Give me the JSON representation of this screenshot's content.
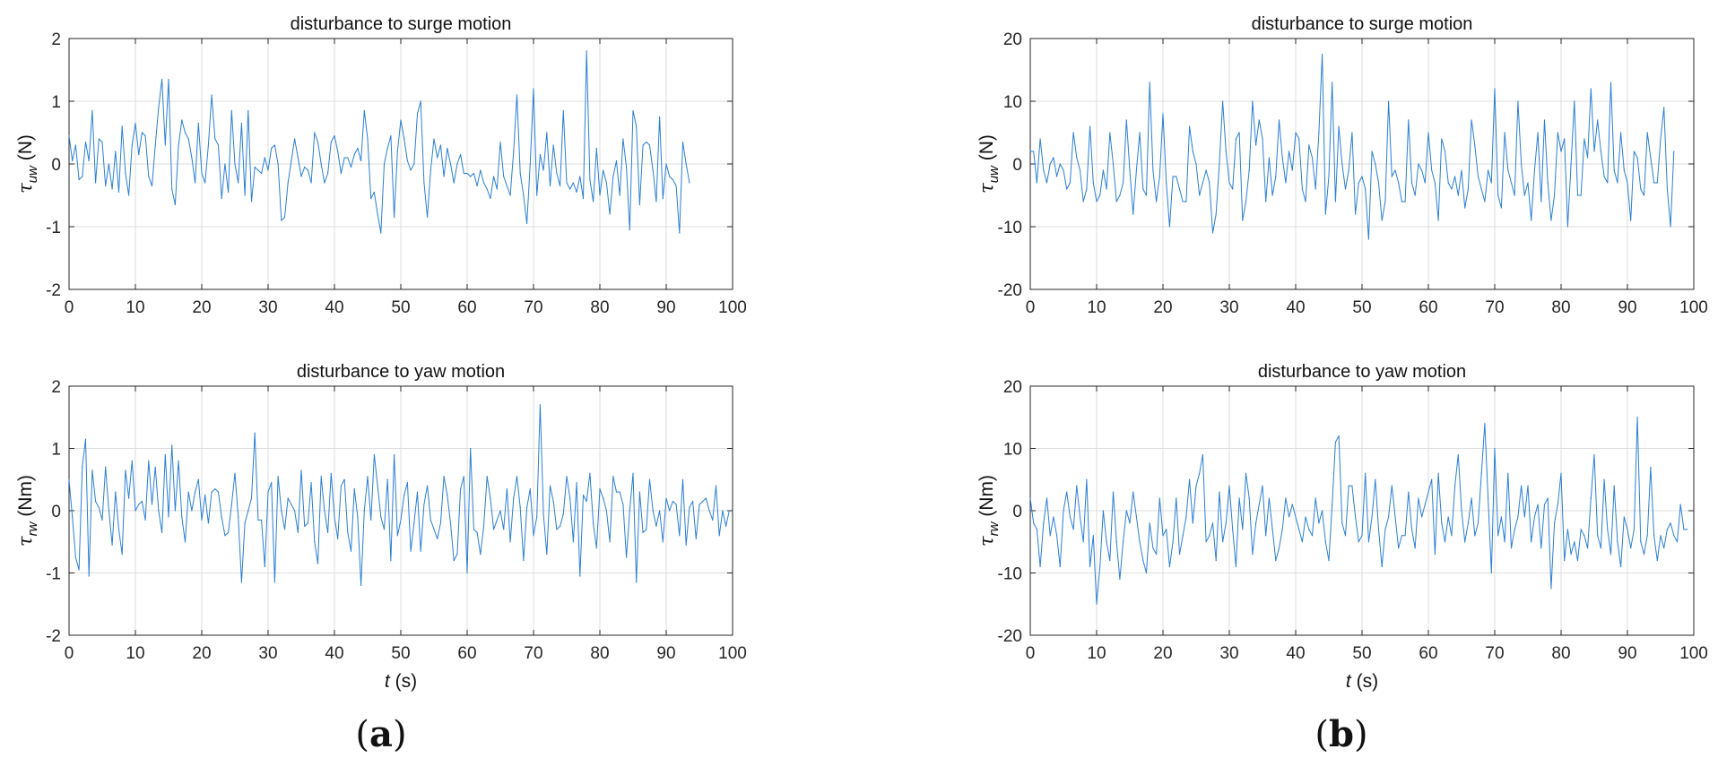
{
  "colors": {
    "series": "#2b7fd4",
    "axis": "#262626",
    "grid": "#dcdcdc"
  },
  "panel_labels": {
    "a": "a",
    "b": "b"
  },
  "chart_data": [
    {
      "id": "a-surge",
      "type": "line",
      "title": "disturbance to surge motion",
      "ylabel_symbol": "τ",
      "ylabel_sub": "uw",
      "ylabel_unit": "(N)",
      "xlabel": "",
      "xlim": [
        0,
        100
      ],
      "ylim": [
        -2,
        2
      ],
      "xticks": [
        0,
        10,
        20,
        30,
        40,
        50,
        60,
        70,
        80,
        90,
        100
      ],
      "yticks": [
        -2,
        -1,
        0,
        1,
        2
      ],
      "grid": true,
      "series": [
        {
          "x_start": 0,
          "x_step": 0.5,
          "values": [
            0.45,
            0.05,
            0.3,
            -0.25,
            -0.2,
            0.35,
            0.05,
            0.85,
            -0.3,
            0.4,
            0.35,
            -0.35,
            0.0,
            -0.4,
            0.2,
            -0.45,
            0.6,
            -0.15,
            -0.5,
            0.3,
            0.65,
            0.15,
            0.5,
            0.45,
            -0.2,
            -0.35,
            0.3,
            0.9,
            1.35,
            0.3,
            1.35,
            -0.4,
            -0.65,
            0.3,
            0.7,
            0.5,
            0.4,
            0.1,
            -0.3,
            0.65,
            -0.15,
            -0.3,
            0.3,
            1.1,
            0.4,
            0.3,
            -0.55,
            0.0,
            -0.45,
            0.85,
            0.0,
            -0.3,
            0.65,
            -0.5,
            0.85,
            -0.6,
            -0.05,
            -0.1,
            -0.15,
            0.1,
            -0.1,
            0.25,
            0.3,
            0.0,
            -0.9,
            -0.85,
            -0.3,
            0.05,
            0.4,
            0.1,
            -0.2,
            -0.05,
            -0.1,
            -0.3,
            0.5,
            0.35,
            0.0,
            -0.3,
            -0.15,
            0.35,
            0.45,
            0.2,
            -0.15,
            0.1,
            0.1,
            -0.05,
            0.15,
            0.25,
            0.05,
            0.85,
            0.4,
            -0.55,
            -0.45,
            -0.8,
            -1.1,
            0.0,
            0.25,
            0.45,
            -0.85,
            0.2,
            0.7,
            0.4,
            0.05,
            -0.1,
            0.0,
            0.8,
            1.0,
            -0.3,
            -0.85,
            -0.1,
            0.4,
            0.1,
            0.3,
            -0.2,
            0.25,
            0.0,
            -0.3,
            0.0,
            0.15,
            -0.15,
            -0.15,
            -0.2,
            -0.15,
            -0.35,
            -0.1,
            -0.3,
            -0.4,
            -0.55,
            -0.2,
            -0.4,
            0.35,
            -0.2,
            -0.35,
            -0.5,
            0.2,
            1.1,
            -0.15,
            -0.5,
            -0.95,
            0.0,
            1.2,
            -0.5,
            0.15,
            -0.1,
            0.5,
            -0.35,
            0.3,
            -0.15,
            -0.35,
            0.85,
            -0.3,
            -0.4,
            -0.3,
            -0.45,
            -0.2,
            -0.55,
            1.8,
            -0.25,
            -0.6,
            0.25,
            -0.5,
            -0.1,
            -0.3,
            -0.8,
            -0.2,
            0.05,
            -0.5,
            0.4,
            -0.05,
            -1.05,
            0.85,
            0.6,
            -0.65,
            0.3,
            0.35,
            0.3,
            -0.1,
            -0.6,
            0.75,
            -0.55,
            0.0,
            -0.2,
            -0.25,
            -0.35,
            -1.1,
            0.35,
            0.0,
            -0.3
          ]
        }
      ]
    },
    {
      "id": "a-yaw",
      "type": "line",
      "title": "disturbance to yaw motion",
      "ylabel_symbol": "τ",
      "ylabel_sub": "rw",
      "ylabel_unit": "(Nm)",
      "xlabel_symbol": "t",
      "xlabel_unit": "(s)",
      "xlim": [
        0,
        100
      ],
      "ylim": [
        -2,
        2
      ],
      "xticks": [
        0,
        10,
        20,
        30,
        40,
        50,
        60,
        70,
        80,
        90,
        100
      ],
      "yticks": [
        -2,
        -1,
        0,
        1,
        2
      ],
      "grid": true,
      "series": [
        {
          "x_start": 0,
          "x_step": 0.5,
          "values": [
            0.5,
            -0.1,
            -0.75,
            -0.95,
            0.7,
            1.15,
            -1.05,
            0.65,
            0.15,
            0.05,
            -0.15,
            0.7,
            0.0,
            -0.55,
            0.3,
            -0.3,
            -0.7,
            0.65,
            0.2,
            0.8,
            0.0,
            0.1,
            0.15,
            -0.15,
            0.8,
            0.1,
            0.7,
            0.0,
            -0.35,
            0.9,
            -0.1,
            1.05,
            0.0,
            0.8,
            -0.1,
            -0.5,
            0.3,
            0.0,
            0.3,
            0.5,
            -0.15,
            0.25,
            -0.2,
            0.3,
            0.35,
            0.3,
            -0.1,
            -0.4,
            -0.35,
            0.1,
            0.6,
            -0.1,
            -1.15,
            -0.2,
            0.0,
            0.2,
            1.25,
            -0.15,
            -0.15,
            -0.9,
            0.3,
            0.45,
            -1.15,
            0.55,
            0.0,
            -0.3,
            0.2,
            0.1,
            0.0,
            -0.35,
            0.65,
            -0.25,
            -0.2,
            0.45,
            -0.5,
            -0.85,
            0.55,
            0.0,
            -0.35,
            0.6,
            -0.1,
            -0.45,
            0.4,
            0.5,
            -0.35,
            -0.65,
            0.35,
            -0.1,
            -1.2,
            0.0,
            0.55,
            -0.15,
            0.9,
            0.4,
            -0.1,
            -0.3,
            0.5,
            -0.8,
            0.9,
            -0.4,
            -0.15,
            0.25,
            0.45,
            -0.65,
            -0.2,
            0.3,
            -0.65,
            0.1,
            0.4,
            -0.15,
            -0.3,
            -0.45,
            -0.2,
            0.55,
            0.25,
            -0.2,
            -0.8,
            -0.7,
            0.35,
            0.55,
            -1.0,
            1.0,
            -0.3,
            -0.35,
            -0.7,
            -0.25,
            0.55,
            0.2,
            -0.3,
            -0.15,
            0.0,
            -0.3,
            0.35,
            -0.5,
            0.2,
            0.55,
            0.05,
            -0.8,
            0.05,
            0.35,
            -0.4,
            -0.1,
            1.7,
            -0.05,
            -0.7,
            0.4,
            0.15,
            -0.3,
            -0.25,
            -0.05,
            0.55,
            0.2,
            -0.5,
            0.45,
            -1.05,
            0.25,
            0.15,
            0.6,
            -0.2,
            -0.6,
            0.35,
            0.2,
            0.0,
            -0.5,
            0.55,
            0.3,
            0.3,
            0.1,
            -0.75,
            0.0,
            0.6,
            -1.15,
            0.3,
            -0.35,
            -0.3,
            0.5,
            0.0,
            -0.25,
            0.0,
            -0.5,
            0.2,
            0.0,
            0.15,
            0.1,
            -0.4,
            0.5,
            -0.55,
            0.05,
            0.15,
            -0.45,
            0.1,
            0.15,
            0.2,
            0.0,
            -0.15,
            0.4,
            -0.4,
            0.0,
            -0.25,
            0.0
          ]
        }
      ]
    },
    {
      "id": "b-surge",
      "type": "line",
      "title": "disturbance to surge motion",
      "ylabel_symbol": "τ",
      "ylabel_sub": "uw",
      "ylabel_unit": "(N)",
      "xlabel": "",
      "xlim": [
        0,
        100
      ],
      "ylim": [
        -20,
        20
      ],
      "xticks": [
        0,
        10,
        20,
        30,
        40,
        50,
        60,
        70,
        80,
        90,
        100
      ],
      "yticks": [
        -20,
        -10,
        0,
        10,
        20
      ],
      "grid": true,
      "series": [
        {
          "x_start": 0,
          "x_step": 0.5,
          "values": [
            2.0,
            2.0,
            -3.0,
            4.0,
            -1.0,
            -3.0,
            0.0,
            1.0,
            -2.0,
            0.0,
            -1.0,
            -4.0,
            -3.0,
            5.0,
            1.0,
            -1.0,
            -6.0,
            -4.0,
            6.0,
            -3.0,
            -6.0,
            -5.0,
            -1.0,
            -4.0,
            5.0,
            0.0,
            -6.0,
            -5.0,
            -3.0,
            7.0,
            -1.0,
            -8.0,
            -1.0,
            5.0,
            -4.0,
            -5.0,
            13.0,
            -1.0,
            -6.0,
            -2.0,
            8.0,
            -3.0,
            -10.0,
            -2.0,
            -2.0,
            -4.0,
            -6.0,
            -6.0,
            6.0,
            2.0,
            0.0,
            -5.0,
            -3.0,
            -1.0,
            -3.0,
            -11.0,
            -8.0,
            0.0,
            10.0,
            2.0,
            -3.0,
            -4.0,
            4.0,
            5.0,
            -9.0,
            -6.0,
            -1.0,
            10.0,
            3.0,
            7.0,
            4.0,
            -6.0,
            1.0,
            -5.0,
            -2.0,
            7.0,
            1.0,
            -3.0,
            2.0,
            -1.0,
            5.0,
            4.0,
            -4.0,
            -6.0,
            3.0,
            1.0,
            -4.0,
            5.0,
            17.5,
            -8.0,
            -2.0,
            13.0,
            -6.0,
            6.0,
            0.0,
            -4.0,
            -1.0,
            5.0,
            -8.0,
            -3.0,
            -2.0,
            -4.0,
            -12.0,
            2.0,
            0.0,
            -3.0,
            -9.0,
            -6.0,
            10.0,
            -2.0,
            -1.0,
            -3.0,
            -6.0,
            -6.0,
            7.0,
            -3.0,
            -5.0,
            0.0,
            -1.0,
            -3.0,
            5.0,
            -1.0,
            -3.0,
            -9.0,
            4.0,
            2.0,
            -3.0,
            -4.0,
            -2.0,
            -5.0,
            -1.0,
            -7.0,
            -4.0,
            7.0,
            3.0,
            -2.0,
            -4.0,
            -6.0,
            -1.0,
            -3.0,
            12.0,
            -5.0,
            -7.0,
            5.0,
            -1.0,
            -3.0,
            -5.0,
            10.0,
            0.0,
            -5.0,
            -3.0,
            -9.0,
            -1.0,
            5.0,
            -6.0,
            7.0,
            -3.0,
            -9.0,
            -5.0,
            5.0,
            2.0,
            4.0,
            -10.0,
            0.0,
            10.0,
            -5.0,
            -5.0,
            4.0,
            1.0,
            12.0,
            2.0,
            7.0,
            2.0,
            -2.0,
            -3.0,
            13.0,
            -1.0,
            -3.0,
            5.0,
            -1.0,
            -3.0,
            -9.0,
            2.0,
            1.0,
            -4.0,
            -5.0,
            5.0,
            1.0,
            -3.0,
            -3.0,
            4.0,
            9.0,
            -4.0,
            -10.0,
            2.0
          ]
        }
      ]
    },
    {
      "id": "b-yaw",
      "type": "line",
      "title": "disturbance to yaw motion",
      "ylabel_symbol": "τ",
      "ylabel_sub": "rw",
      "ylabel_unit": "(Nm)",
      "xlabel_symbol": "t",
      "xlabel_unit": "(s)",
      "xlim": [
        0,
        100
      ],
      "ylim": [
        -20,
        20
      ],
      "xticks": [
        0,
        10,
        20,
        30,
        40,
        50,
        60,
        70,
        80,
        90,
        100
      ],
      "yticks": [
        -20,
        -10,
        0,
        10,
        20
      ],
      "grid": true,
      "series": [
        {
          "x_start": 0,
          "x_step": 0.5,
          "values": [
            2.0,
            -2.0,
            -3.0,
            -9.0,
            -2.0,
            2.0,
            -4.0,
            -1.0,
            -4.0,
            -9.0,
            0.0,
            3.0,
            -1.0,
            -3.0,
            4.0,
            -1.0,
            -5.0,
            5.0,
            -9.0,
            -4.0,
            -15.0,
            -9.0,
            0.0,
            -5.0,
            -8.0,
            3.0,
            -5.0,
            -11.0,
            -5.0,
            0.0,
            -2.0,
            3.0,
            -1.0,
            -5.0,
            -8.0,
            -10.0,
            -2.0,
            -6.0,
            -7.0,
            2.0,
            -4.0,
            -3.0,
            -9.0,
            -5.0,
            2.0,
            -7.0,
            -4.0,
            -1.0,
            5.0,
            -2.0,
            4.0,
            6.0,
            9.0,
            -5.0,
            -4.0,
            -2.0,
            -8.0,
            3.0,
            -5.0,
            -2.0,
            4.0,
            -3.0,
            -9.0,
            2.0,
            -3.0,
            6.0,
            2.0,
            -7.0,
            -2.0,
            1.0,
            4.0,
            -4.0,
            2.0,
            -3.0,
            -8.0,
            -6.0,
            -3.0,
            2.0,
            -1.0,
            1.0,
            -1.0,
            -3.0,
            -5.0,
            -1.0,
            -3.0,
            -4.0,
            2.0,
            -2.0,
            0.0,
            -5.0,
            -8.0,
            1.0,
            11.0,
            12.0,
            -2.0,
            -4.0,
            4.0,
            4.0,
            -1.0,
            -5.0,
            -4.0,
            6.0,
            -5.0,
            -1.0,
            5.0,
            -3.0,
            -9.0,
            -3.0,
            -1.0,
            4.0,
            -1.0,
            -6.0,
            -4.0,
            -4.0,
            3.0,
            -3.0,
            -6.0,
            2.0,
            -1.0,
            1.0,
            3.0,
            5.0,
            -7.0,
            6.0,
            -2.0,
            -5.0,
            -1.0,
            -4.0,
            4.0,
            9.0,
            0.0,
            -5.0,
            -2.0,
            2.0,
            -4.0,
            -2.0,
            6.0,
            14.0,
            2.0,
            -10.0,
            10.0,
            -4.0,
            -1.0,
            -5.0,
            6.0,
            -6.0,
            -3.0,
            -1.0,
            4.0,
            -1.0,
            4.0,
            -5.0,
            -1.0,
            1.0,
            -6.0,
            1.0,
            2.0,
            -12.5,
            -2.0,
            1.0,
            6.0,
            -8.0,
            -3.0,
            -7.0,
            -5.0,
            -8.0,
            -3.0,
            -4.0,
            -6.0,
            2.0,
            9.0,
            -4.0,
            -6.0,
            5.0,
            -3.0,
            -7.0,
            4.0,
            -5.0,
            -9.0,
            -1.0,
            -3.0,
            -6.0,
            -3.0,
            15.0,
            -5.0,
            -7.0,
            -4.0,
            7.0,
            -4.0,
            -8.0,
            -4.0,
            -6.0,
            -3.0,
            -2.0,
            -4.0,
            -5.0,
            1.0,
            -3.0,
            -3.0
          ]
        }
      ]
    }
  ]
}
